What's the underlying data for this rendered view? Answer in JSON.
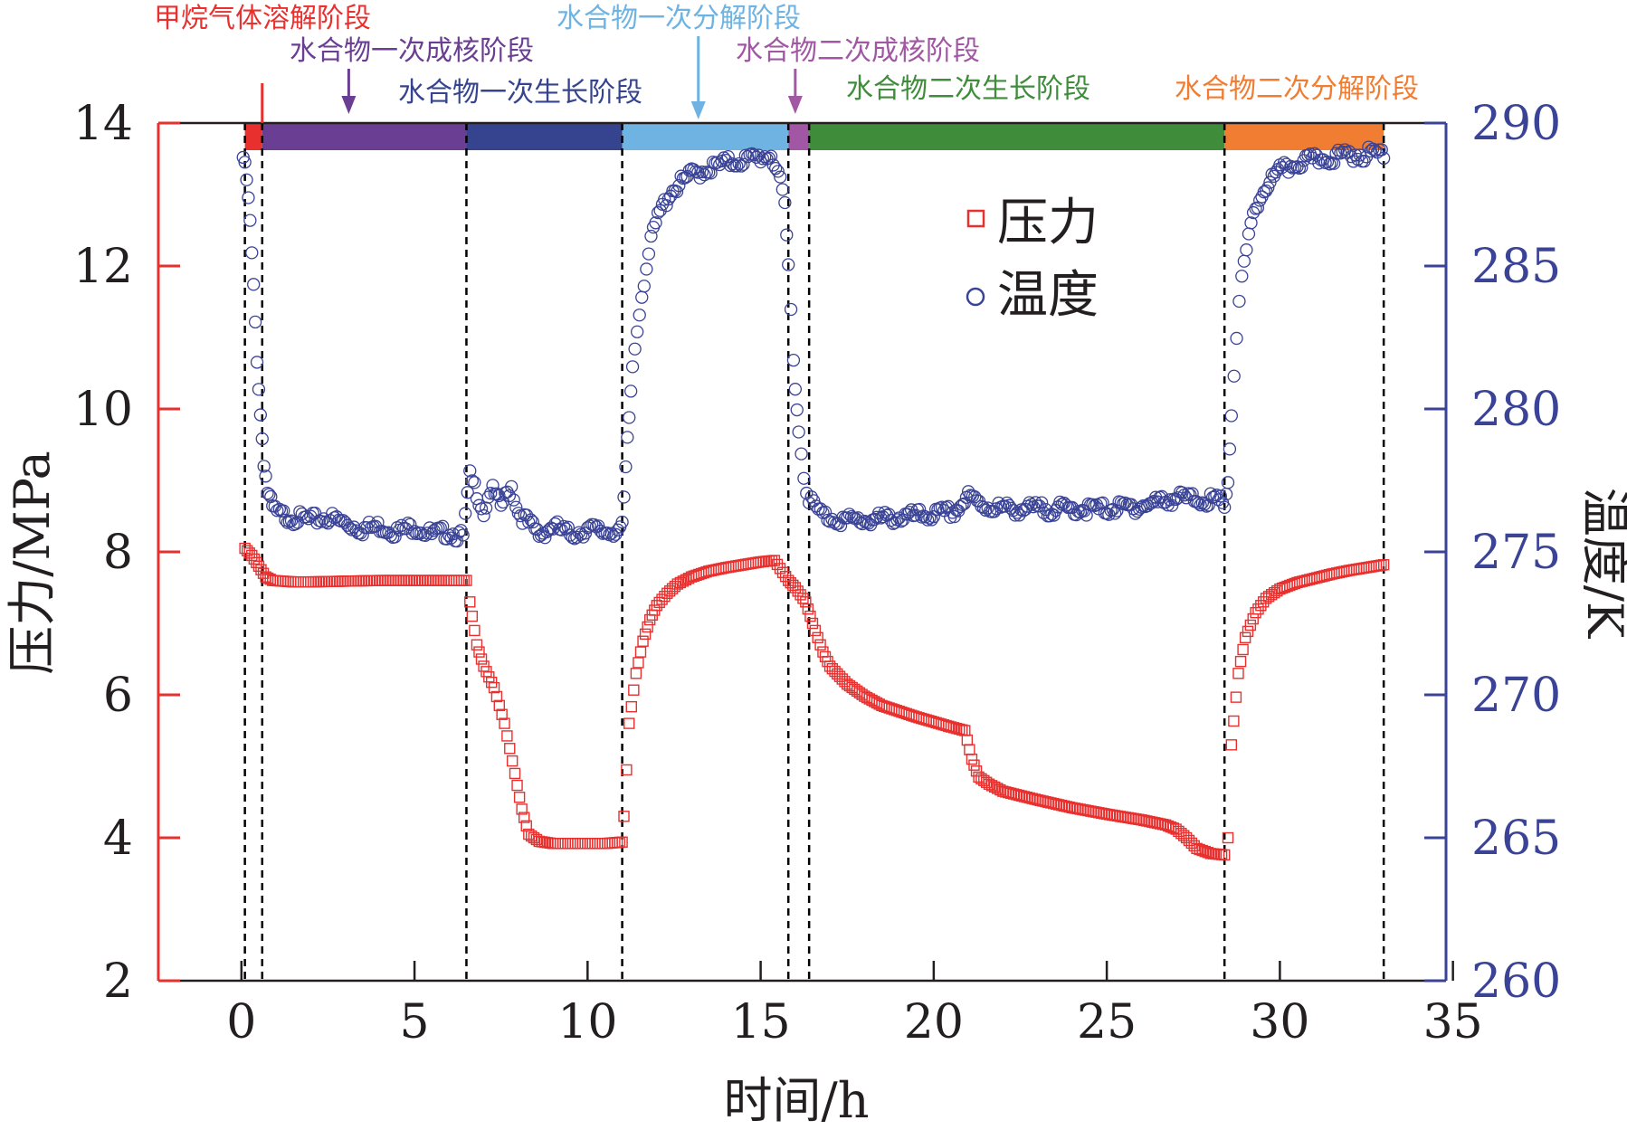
{
  "chart_data": {
    "type": "scatter",
    "xlabel": "时间/h",
    "ylabel_left": "压力/MPa",
    "ylabel_right": "温度/K",
    "xlim": [
      -2.4,
      34.8
    ],
    "ylim_left": [
      2,
      14
    ],
    "ylim_right": [
      260,
      290
    ],
    "xticks": [
      0,
      5,
      10,
      15,
      20,
      25,
      30,
      35
    ],
    "yticks_left": [
      2,
      4,
      6,
      8,
      10,
      12,
      14
    ],
    "yticks_right": [
      260,
      265,
      270,
      275,
      280,
      285,
      290
    ],
    "legend": {
      "position": "upper-right",
      "entries": [
        {
          "name": "压力",
          "marker": "square",
          "color": "#e8302f"
        },
        {
          "name": "温度",
          "marker": "circle",
          "color": "#3a4396"
        }
      ]
    },
    "colors": {
      "pressure": "#e8302f",
      "temperature": "#3a4396"
    },
    "boundaries": [
      0.1,
      0.6,
      6.5,
      11.0,
      15.8,
      16.4,
      28.4,
      33.0
    ],
    "stages": [
      {
        "name": "甲烷气体溶解阶段",
        "start": 0.1,
        "end": 0.6,
        "color": "#e8302f",
        "arrow": false
      },
      {
        "name": "水合物一次成核阶段",
        "start": 0.6,
        "end": 6.5,
        "color": "#6a3e93",
        "arrow": true,
        "arrow_x": 3.1
      },
      {
        "name": "水合物一次生长阶段",
        "start": 6.5,
        "end": 11.0,
        "color": "#36438f",
        "arrow": false
      },
      {
        "name": "水合物一次分解阶段",
        "start": 11.0,
        "end": 15.8,
        "color": "#6eb3e1",
        "arrow": true,
        "arrow_x": 13.2
      },
      {
        "name": "水合物二次成核阶段",
        "start": 15.8,
        "end": 16.4,
        "color": "#a157a3",
        "arrow": true,
        "arrow_x": 16.0
      },
      {
        "name": "水合物二次生长阶段",
        "start": 16.4,
        "end": 28.4,
        "color": "#3f8c3b",
        "arrow": false
      },
      {
        "name": "水合物二次分解阶段",
        "start": 28.4,
        "end": 33.0,
        "color": "#f07d32",
        "arrow": false
      }
    ],
    "series": [
      {
        "name": "压力",
        "axis": "left",
        "x": [
          0.1,
          0.3,
          0.5,
          0.7,
          0.9,
          1.5,
          2,
          3,
          4,
          5,
          6,
          6.5,
          6.6,
          6.8,
          7,
          7.3,
          7.6,
          7.9,
          8.1,
          8.3,
          8.6,
          9,
          9.5,
          10,
          10.5,
          11,
          11.05,
          11.2,
          11.4,
          11.6,
          11.8,
          12,
          12.3,
          12.6,
          13,
          13.5,
          14,
          14.5,
          15,
          15.4,
          15.8,
          16.0,
          16.3,
          16.5,
          16.8,
          17,
          17.5,
          18,
          18.5,
          19,
          19.5,
          20,
          20.5,
          20.9,
          21.1,
          21.3,
          21.6,
          22,
          23,
          24,
          25,
          26,
          26.7,
          27,
          27.3,
          27.6,
          28,
          28.4,
          28.5,
          28.6,
          28.8,
          29,
          29.3,
          29.6,
          30,
          30.5,
          31,
          31.5,
          32,
          32.5,
          33
        ],
        "values": [
          8.05,
          7.95,
          7.8,
          7.65,
          7.6,
          7.58,
          7.58,
          7.59,
          7.6,
          7.6,
          7.6,
          7.6,
          7.3,
          6.7,
          6.4,
          6.1,
          5.6,
          4.9,
          4.4,
          4.05,
          3.95,
          3.92,
          3.92,
          3.92,
          3.92,
          3.94,
          4.3,
          5.6,
          6.3,
          6.75,
          7.05,
          7.25,
          7.42,
          7.55,
          7.65,
          7.73,
          7.78,
          7.82,
          7.86,
          7.88,
          7.6,
          7.5,
          7.3,
          7.0,
          6.6,
          6.4,
          6.15,
          5.98,
          5.85,
          5.77,
          5.69,
          5.62,
          5.55,
          5.5,
          5.1,
          4.85,
          4.75,
          4.65,
          4.53,
          4.42,
          4.33,
          4.25,
          4.18,
          4.12,
          4.0,
          3.85,
          3.78,
          3.76,
          4.0,
          5.3,
          6.3,
          6.8,
          7.15,
          7.35,
          7.48,
          7.57,
          7.63,
          7.69,
          7.74,
          7.78,
          7.82
        ]
      },
      {
        "name": "温度",
        "axis": "right",
        "x": [
          0.05,
          0.15,
          0.25,
          0.35,
          0.45,
          0.55,
          0.65,
          0.75,
          0.9,
          1.1,
          1.5,
          2,
          2.5,
          3,
          3.5,
          4,
          4.5,
          5,
          5.5,
          6,
          6.4,
          6.6,
          6.8,
          7.0,
          7.2,
          7.5,
          7.8,
          8.0,
          8.3,
          8.6,
          9,
          9.5,
          10,
          10.5,
          11,
          11.05,
          11.15,
          11.3,
          11.5,
          11.7,
          11.9,
          12.1,
          12.4,
          12.7,
          13,
          13.5,
          14,
          14.5,
          15,
          15.3,
          15.5,
          15.7,
          15.8,
          15.95,
          16.1,
          16.25,
          16.4,
          16.6,
          16.8,
          17,
          17.5,
          18,
          19,
          20,
          20.6,
          21,
          21.5,
          22,
          23,
          24,
          25,
          26,
          27,
          28,
          28.4,
          28.5,
          28.6,
          28.75,
          28.9,
          29.1,
          29.3,
          29.6,
          30,
          30.5,
          31,
          31.5,
          32,
          32.5,
          33
        ],
        "values": [
          288.8,
          288.0,
          286.5,
          284.2,
          281.8,
          279.8,
          278.2,
          277.1,
          276.5,
          276.3,
          276.2,
          276.1,
          276.2,
          276.0,
          275.8,
          275.9,
          275.7,
          275.9,
          275.6,
          275.7,
          275.5,
          277.6,
          277.1,
          276.4,
          277.2,
          276.6,
          277.3,
          276.4,
          276.0,
          275.6,
          275.9,
          275.6,
          275.8,
          275.7,
          275.8,
          276.8,
          278.8,
          281.5,
          283.5,
          285.0,
          286.2,
          286.9,
          287.6,
          287.9,
          288.2,
          288.4,
          288.6,
          288.7,
          288.8,
          288.9,
          288.3,
          287.0,
          285.0,
          281.8,
          279.2,
          277.7,
          276.9,
          276.5,
          276.3,
          276.2,
          276.1,
          276.1,
          276.2,
          276.3,
          276.4,
          276.9,
          276.6,
          276.5,
          276.5,
          276.5,
          276.5,
          276.6,
          276.9,
          276.8,
          276.7,
          277.5,
          279.8,
          282.6,
          284.5,
          286.0,
          287.0,
          287.8,
          288.3,
          288.6,
          288.7,
          288.8,
          288.9,
          288.9,
          289.0
        ]
      }
    ]
  }
}
